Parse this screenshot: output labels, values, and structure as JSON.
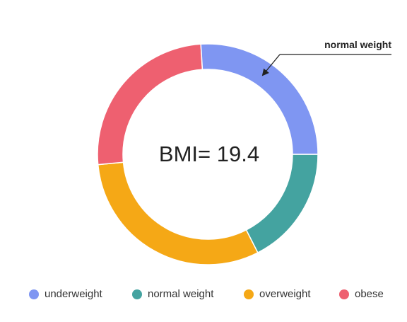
{
  "chart_data": {
    "type": "pie",
    "variant": "donut",
    "center_label": "BMI= 19.4",
    "annotation": {
      "text": "normal weight",
      "target": "normal weight"
    },
    "slices": [
      {
        "name": "normal weight",
        "value": 17.5,
        "color": "#44A3A0"
      },
      {
        "name": "overweight",
        "value": 31,
        "color": "#F5A816"
      },
      {
        "name": "obese",
        "value": 25.5,
        "color": "#EE6070"
      },
      {
        "name": "underweight",
        "value": 26,
        "color": "#7F96F2"
      }
    ],
    "legend": {
      "placement": "bottom",
      "entries": [
        {
          "label": "underweight",
          "color": "#7F96F2"
        },
        {
          "label": "normal weight",
          "color": "#44A3A0"
        },
        {
          "label": "overweight",
          "color": "#F5A816"
        },
        {
          "label": "obese",
          "color": "#EE6070"
        }
      ]
    }
  }
}
